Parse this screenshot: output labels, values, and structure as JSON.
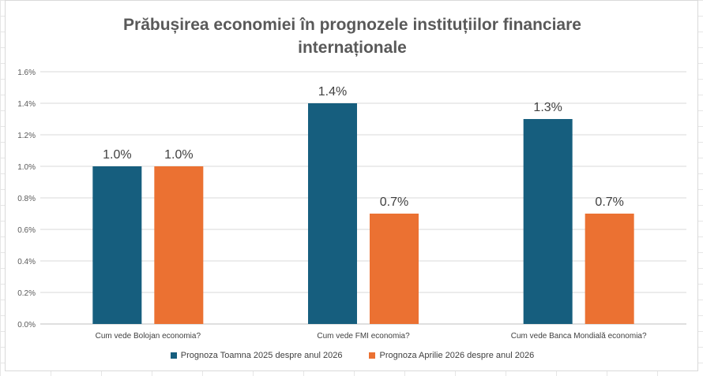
{
  "chart_data": {
    "type": "bar",
    "title_lines": [
      "Prăbușirea economiei în prognozele instituțiilor financiare",
      "internaționale"
    ],
    "categories": [
      "Cum vede Bolojan economia?",
      "Cum vede FMI economia?",
      "Cum vede Banca Mondială economia?"
    ],
    "series": [
      {
        "name": "Prognoza Toamna 2025 despre anul 2026",
        "color": "#165e7e",
        "values": [
          1.0,
          1.4,
          1.3
        ],
        "labels": [
          "1.0%",
          "1.4%",
          "1.3%"
        ]
      },
      {
        "name": "Prognoza Aprilie 2026 despre anul 2026",
        "color": "#eb7132",
        "values": [
          1.0,
          0.7,
          0.7
        ],
        "labels": [
          "1.0%",
          "0.7%",
          "0.7%"
        ]
      }
    ],
    "yticks": [
      "0.0%",
      "0.2%",
      "0.4%",
      "0.6%",
      "0.8%",
      "1.0%",
      "1.2%",
      "1.4%",
      "1.6%"
    ],
    "ylim": [
      0,
      1.6
    ],
    "grid": true,
    "legend_position": "bottom"
  }
}
